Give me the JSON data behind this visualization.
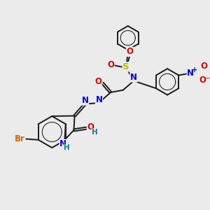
{
  "bg_color": "#ebebeb",
  "bond_color": "#1a1a1a",
  "bond_width": 1.4,
  "atom_colors": {
    "C": "#1a1a1a",
    "N": "#0000ee",
    "O": "#dd0000",
    "S": "#bbbb00",
    "Br": "#cc6600",
    "H": "#008888"
  },
  "font_size": 8.5
}
